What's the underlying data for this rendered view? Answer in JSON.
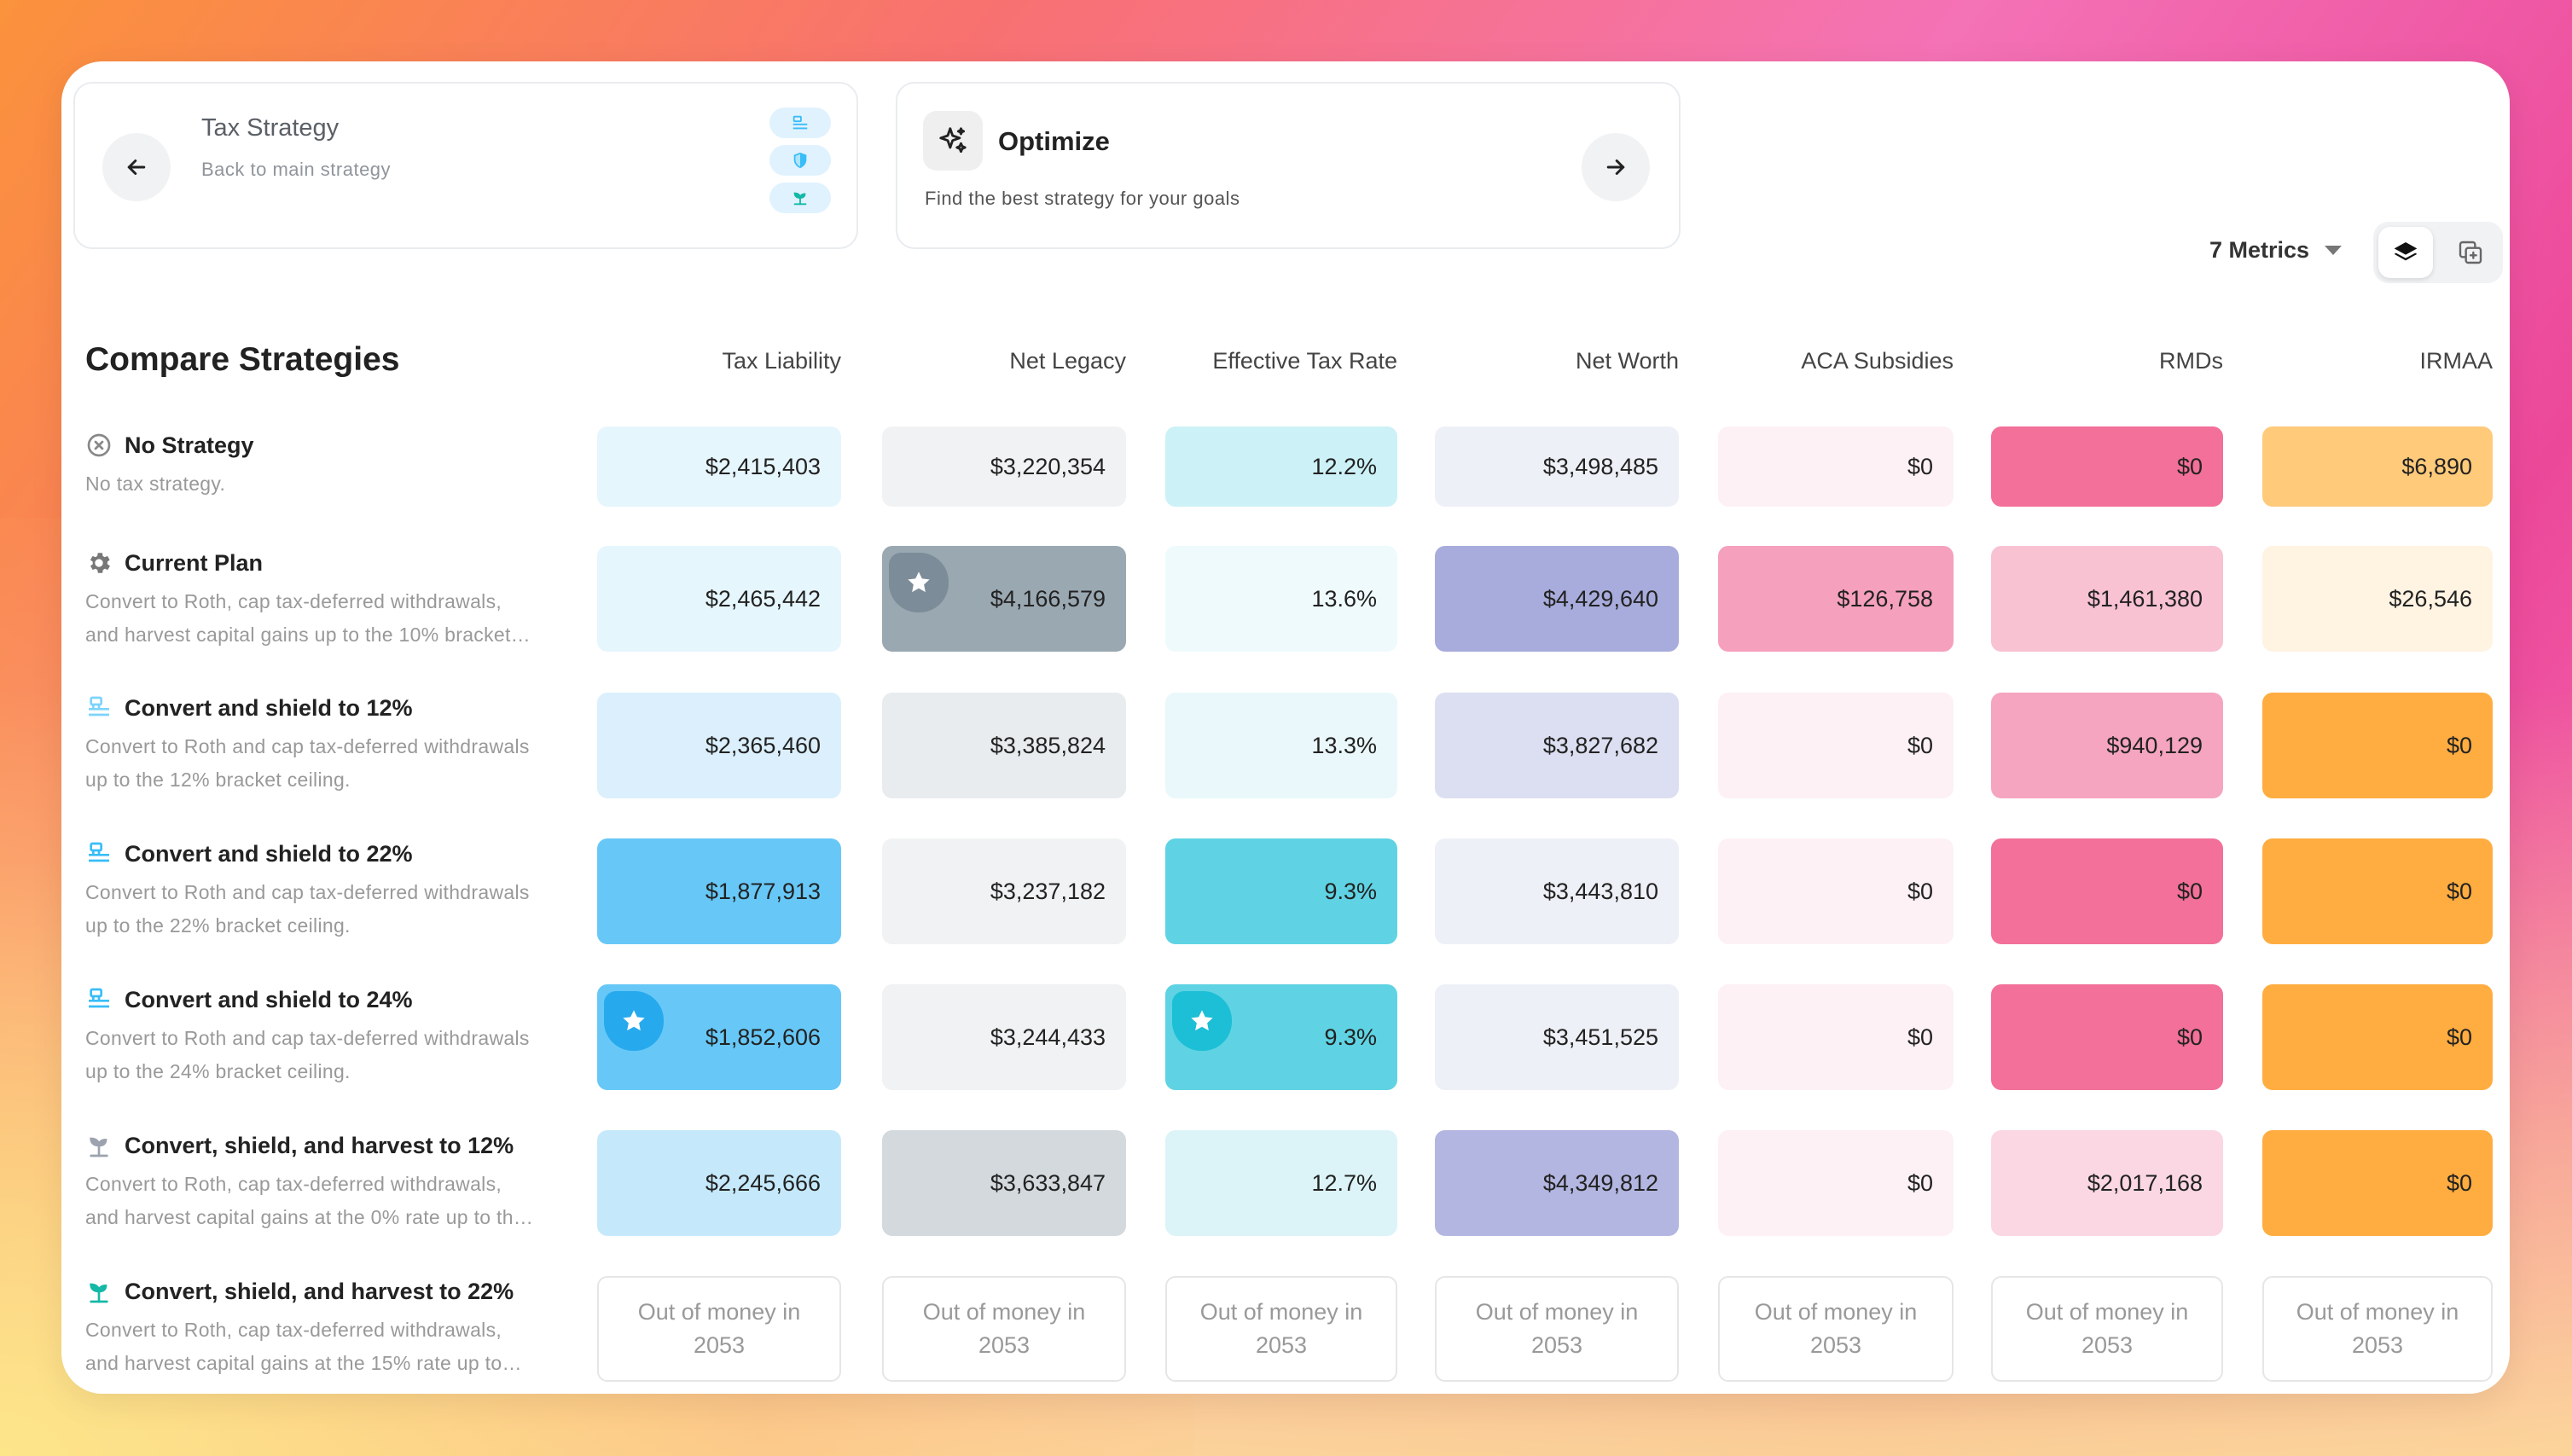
{
  "header": {
    "back_card": {
      "title": "Tax Strategy",
      "subtitle": "Back to main strategy"
    },
    "optimize_card": {
      "title": "Optimize",
      "subtitle": "Find the best strategy for your goals"
    },
    "metrics_select": "7 Metrics"
  },
  "table": {
    "title": "Compare Strategies",
    "columns": [
      "Tax Liability",
      "Net Legacy",
      "Effective Tax Rate",
      "Net Worth",
      "ACA Subsidies",
      "RMDs",
      "IRMAA"
    ],
    "rows": [
      {
        "name": "No Strategy",
        "icon": "x-circle-icon",
        "desc": [
          "No tax strategy."
        ],
        "values": [
          "$2,415,403",
          "$3,220,354",
          "12.2%",
          "$3,498,485",
          "$0",
          "$0",
          "$6,890"
        ]
      },
      {
        "name": "Current Plan",
        "icon": "gear-icon",
        "desc": [
          "Convert to Roth, cap tax-deferred withdrawals,",
          "and harvest capital gains up to the 10% bracket…"
        ],
        "values": [
          "$2,465,442",
          "$4,166,579",
          "13.6%",
          "$4,429,640",
          "$126,758",
          "$1,461,380",
          "$26,546"
        ]
      },
      {
        "name": "Convert and shield to 12%",
        "icon": "convert-shield-icon",
        "desc": [
          "Convert to Roth and cap tax-deferred withdrawals",
          "up to the 12% bracket ceiling."
        ],
        "values": [
          "$2,365,460",
          "$3,385,824",
          "13.3%",
          "$3,827,682",
          "$0",
          "$940,129",
          "$0"
        ]
      },
      {
        "name": "Convert and shield to 22%",
        "icon": "convert-shield-icon",
        "desc": [
          "Convert to Roth and cap tax-deferred withdrawals",
          "up to the 22% bracket ceiling."
        ],
        "values": [
          "$1,877,913",
          "$3,237,182",
          "9.3%",
          "$3,443,810",
          "$0",
          "$0",
          "$0"
        ]
      },
      {
        "name": "Convert and shield to 24%",
        "icon": "convert-shield-icon",
        "desc": [
          "Convert to Roth and cap tax-deferred withdrawals",
          "up to the 24% bracket ceiling."
        ],
        "values": [
          "$1,852,606",
          "$3,244,433",
          "9.3%",
          "$3,451,525",
          "$0",
          "$0",
          "$0"
        ]
      },
      {
        "name": "Convert, shield, and harvest to 12%",
        "icon": "sprout-icon",
        "desc": [
          "Convert to Roth, cap tax-deferred withdrawals,",
          "and harvest capital gains at the 0% rate up to th…"
        ],
        "values": [
          "$2,245,666",
          "$3,633,847",
          "12.7%",
          "$4,349,812",
          "$0",
          "$2,017,168",
          "$0"
        ]
      },
      {
        "name": "Convert, shield, and harvest to 22%",
        "icon": "sprout-icon",
        "desc": [
          "Convert to Roth, cap tax-deferred withdrawals,",
          "and harvest capital gains at the 15% rate up to…"
        ],
        "out_of_money": [
          "Out of money in",
          "2053"
        ]
      }
    ]
  },
  "colors": {
    "tax_liability": [
      "#e6f6fd",
      "#e6f6fd",
      "#dbf0fc",
      "#67c8f7",
      "#67c8f7",
      "#c5e9fb"
    ],
    "net_legacy": [
      "#f1f2f3",
      "#9aa8b2",
      "#e9ecee",
      "#f1f2f3",
      "#f1f2f3",
      "#d3d9dd"
    ],
    "effective_tax_rate": [
      "#ccf1f6",
      "#eefafc",
      "#eaf8fb",
      "#5fd3e3",
      "#5fd3e3",
      "#dcf4f8"
    ],
    "net_worth": [
      "#eef0f7",
      "#a8acdc",
      "#dcdff1",
      "#eef0f7",
      "#eef0f7",
      "#b3b6e0"
    ],
    "aca_subsidies": [
      "#fdf1f5",
      "#f5a0bc",
      "#fdf1f5",
      "#fdf1f5",
      "#fdf1f5",
      "#fdf1f5"
    ],
    "rmds": [
      "#f27099",
      "#f8c2d3",
      "#f5a5bf",
      "#f27099",
      "#f27099",
      "#fad7e3"
    ],
    "irmaa": [
      "#ffca7a",
      "#fff3e2",
      "#ffad40",
      "#ffad40",
      "#ffad40",
      "#ffad40"
    ]
  },
  "stars": [
    {
      "row": 1,
      "col": 1,
      "badge_color": "#7c8c98"
    },
    {
      "row": 4,
      "col": 0,
      "badge_color": "#27a9ee"
    },
    {
      "row": 4,
      "col": 2,
      "badge_color": "#1cbfd6"
    }
  ]
}
